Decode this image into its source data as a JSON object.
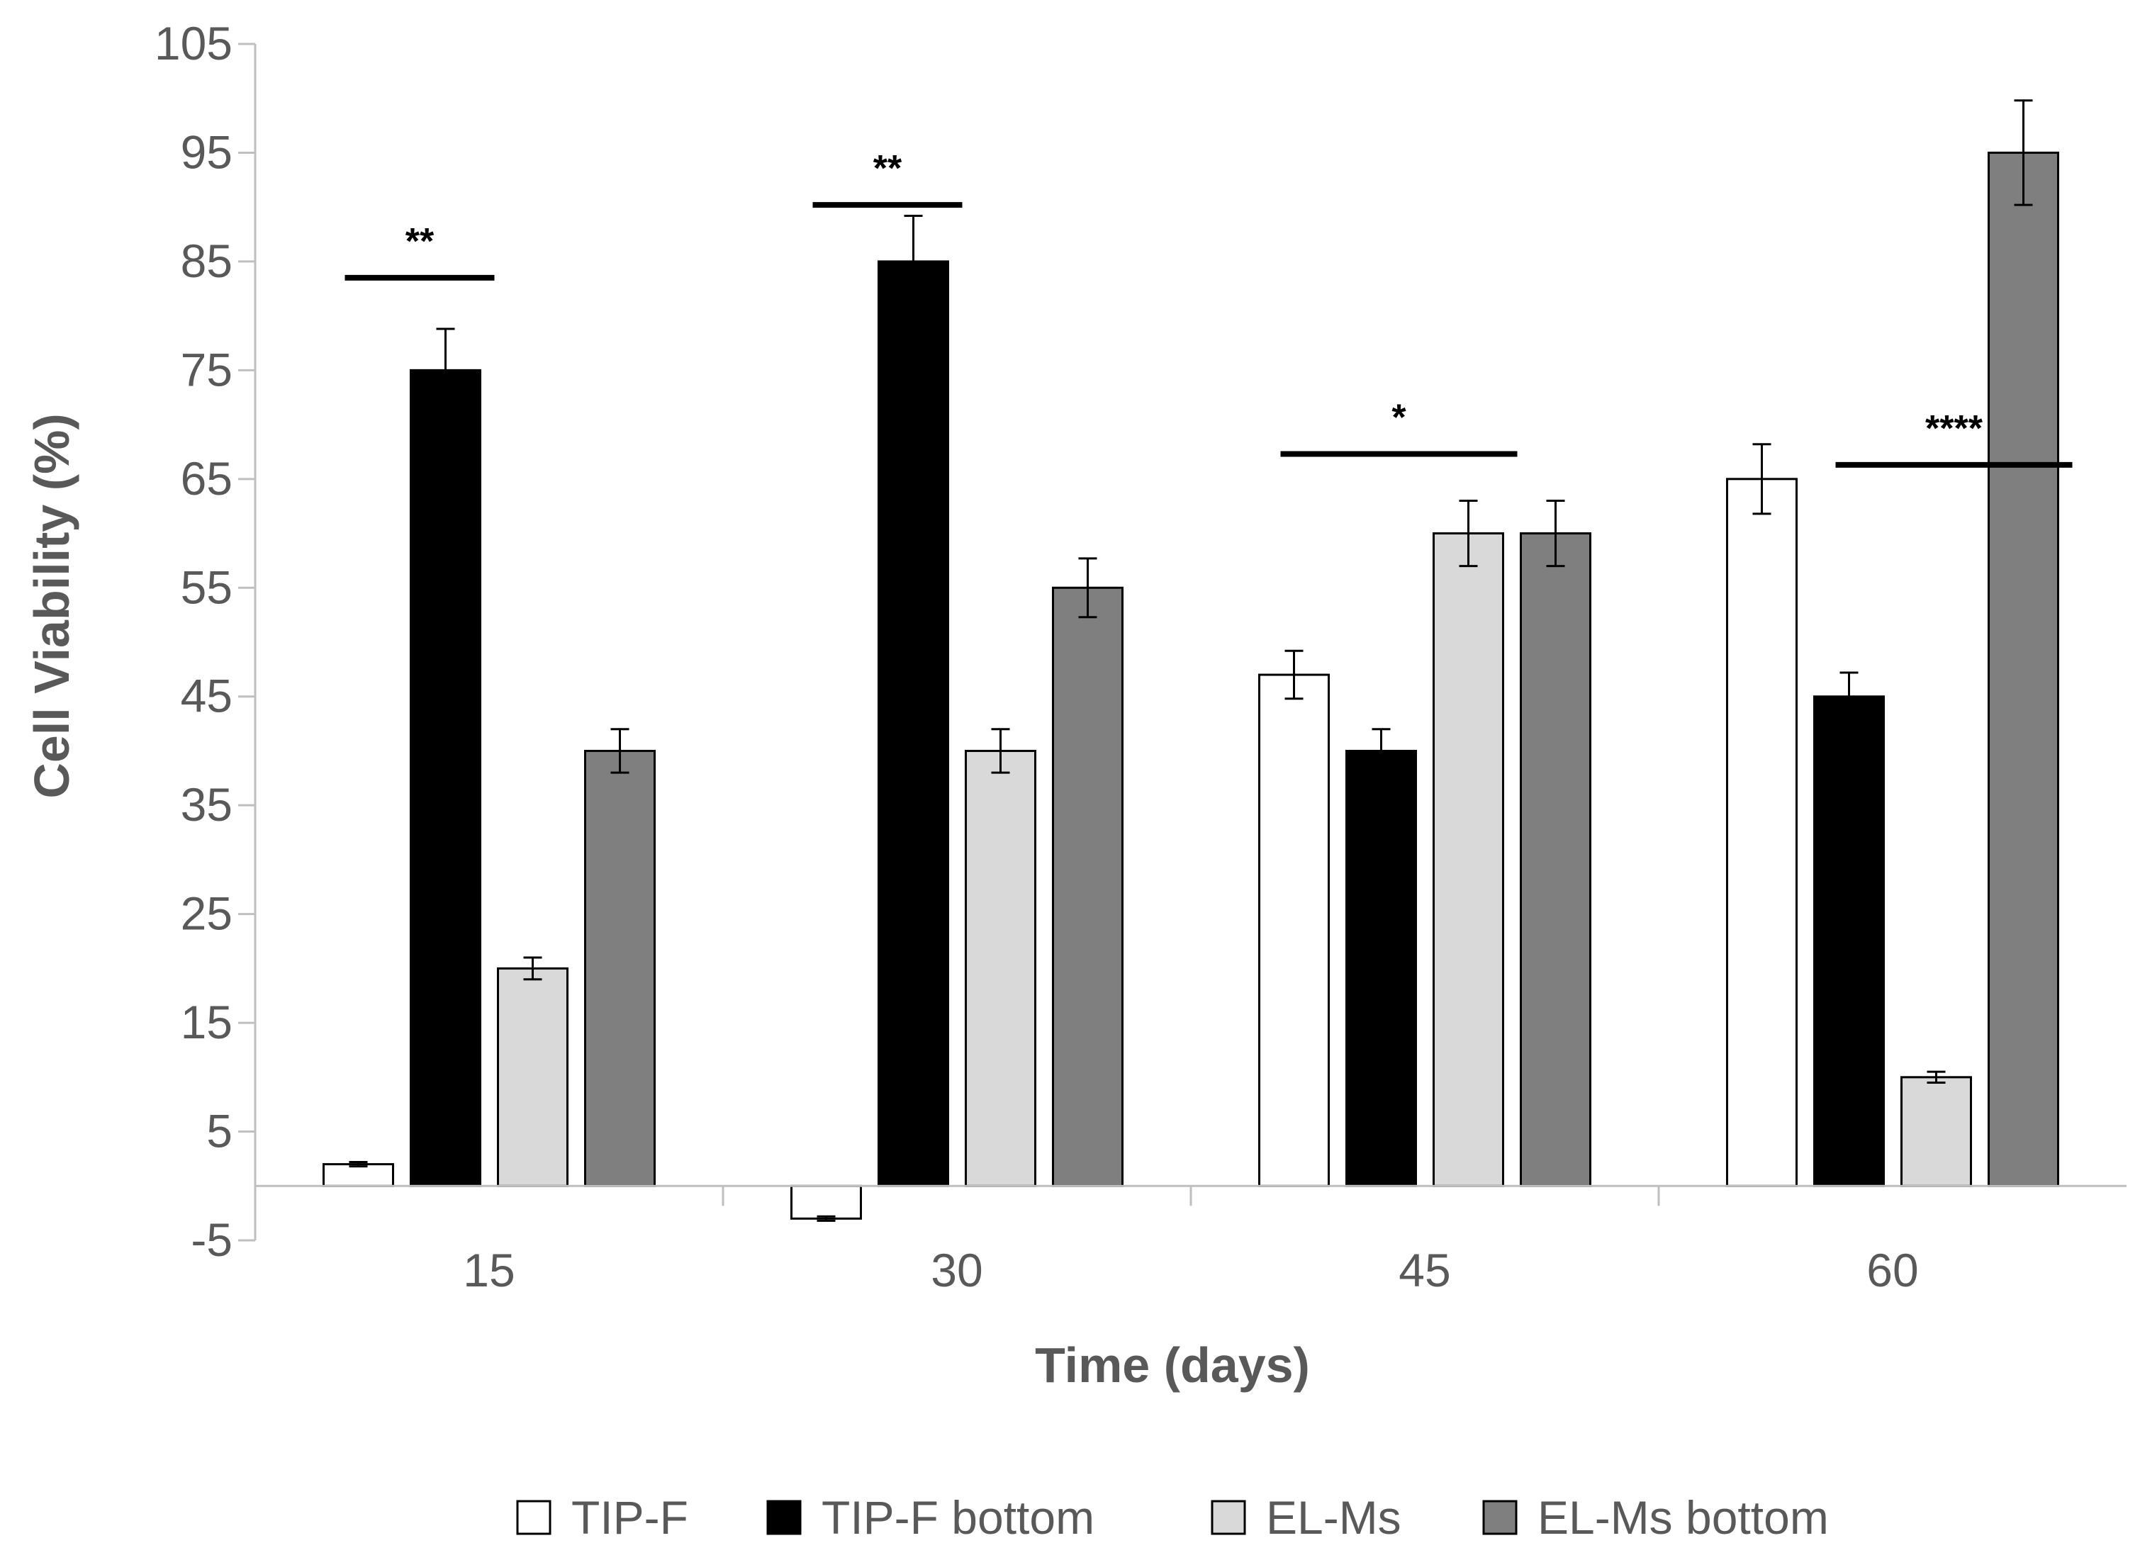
{
  "chart_data": {
    "type": "bar",
    "title": "",
    "xlabel": "Time (days)",
    "ylabel": "Cell Viability (%)",
    "ylim": [
      -5,
      105
    ],
    "yticks": [
      -5,
      5,
      15,
      25,
      35,
      45,
      55,
      65,
      75,
      85,
      95,
      105
    ],
    "ytick_labels": [
      "-5",
      "5",
      "15",
      "25",
      "35",
      "45",
      "55",
      "65",
      "75",
      "85",
      "95",
      "105"
    ],
    "categories": [
      "15",
      "30",
      "45",
      "60"
    ],
    "grid": false,
    "legend_position": "bottom",
    "series": [
      {
        "name": "TIP-F",
        "color": "#ffffff",
        "values": [
          2,
          -3,
          47,
          65
        ],
        "errors": [
          0.2,
          0.2,
          2.2,
          3.2
        ]
      },
      {
        "name": "TIP-F bottom",
        "color": "#000000",
        "values": [
          75,
          85,
          40,
          45
        ],
        "errors": [
          3.8,
          4.2,
          2.0,
          2.2
        ]
      },
      {
        "name": "EL-Ms",
        "color": "#d9d9d9",
        "values": [
          20,
          40,
          60,
          10
        ],
        "errors": [
          1.0,
          2.0,
          3.0,
          0.5
        ]
      },
      {
        "name": "EL-Ms bottom",
        "color": "#7f7f7f",
        "values": [
          40,
          55,
          60,
          95
        ],
        "errors": [
          2.0,
          2.7,
          3.0,
          4.8
        ]
      }
    ],
    "significance": [
      {
        "category": "15",
        "label": "**",
        "y": 83.5,
        "from_series": 0,
        "to_series": 1
      },
      {
        "category": "30",
        "label": "**",
        "y": 90.2,
        "from_series": 0,
        "to_series": 1
      },
      {
        "category": "45",
        "label": "*",
        "y": 67.3,
        "from_series": 0,
        "to_series": 2
      },
      {
        "category": "60",
        "label": "****",
        "y": 66.3,
        "from_series": 1,
        "to_series": 3
      }
    ]
  }
}
